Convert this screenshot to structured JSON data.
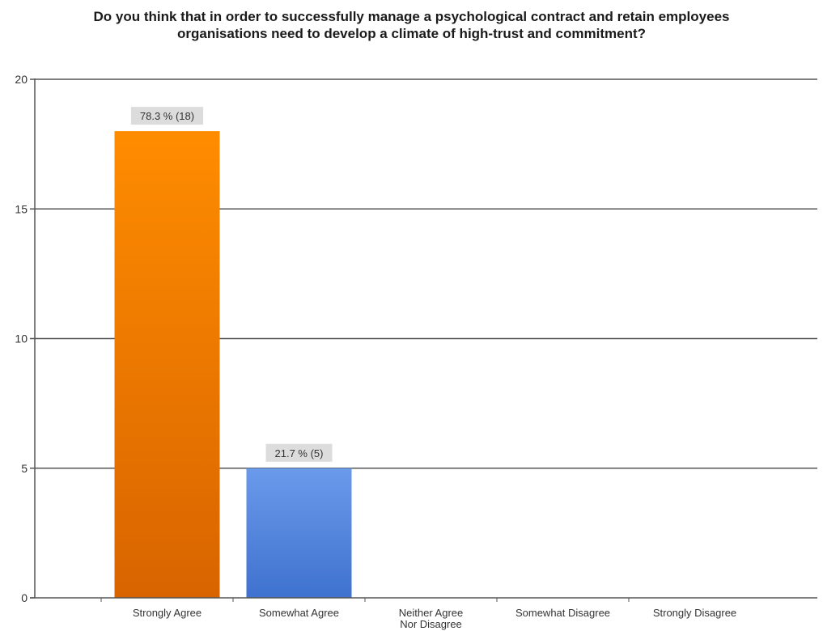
{
  "chart_data": {
    "type": "bar",
    "title": [
      "Do you think that in order to successfully manage a psychological contract and retain employees",
      "organisations need to develop a climate of high-trust and commitment?"
    ],
    "categories": [
      [
        "Strongly Agree"
      ],
      [
        "Somewhat Agree"
      ],
      [
        "Neither Agree",
        "Nor Disagree"
      ],
      [
        "Somewhat Disagree"
      ],
      [
        "Strongly Disagree"
      ]
    ],
    "values": [
      18,
      5,
      0,
      0,
      0
    ],
    "data_labels": [
      "78.3 % (18)",
      "21.7 % (5)",
      "",
      "",
      ""
    ],
    "bar_colors": [
      [
        "#ff8c00",
        "#d86400"
      ],
      [
        "#6a9aea",
        "#3f72cf"
      ],
      null,
      null,
      null
    ],
    "ylim": [
      0,
      20
    ],
    "yticks": [
      0,
      5,
      10,
      15,
      20
    ],
    "grid": true,
    "xlabel": "",
    "ylabel": ""
  }
}
